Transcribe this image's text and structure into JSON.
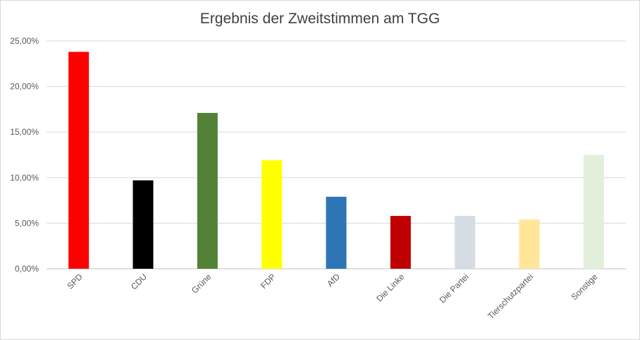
{
  "chart_data": {
    "type": "bar",
    "title": "Ergebnis der Zweitstimmen am TGG",
    "xlabel": "",
    "ylabel": "",
    "categories": [
      "SPD",
      "CDU",
      "Grüne",
      "FDP",
      "AfD",
      "Die Linke",
      "Die Partei",
      "Tierschutzpartei",
      "Sonstige"
    ],
    "values": [
      23.8,
      9.7,
      17.1,
      11.9,
      7.9,
      5.8,
      5.8,
      5.4,
      12.5
    ],
    "colors": [
      "#ff0000",
      "#000000",
      "#538135",
      "#ffff00",
      "#2e75b6",
      "#c00000",
      "#d6dce4",
      "#ffe699",
      "#e2efda"
    ],
    "ylim": [
      0,
      25
    ],
    "yticks": [
      "0,00%",
      "5,00%",
      "10,00%",
      "15,00%",
      "20,00%",
      "25,00%"
    ],
    "grid": true,
    "legend": "none"
  }
}
